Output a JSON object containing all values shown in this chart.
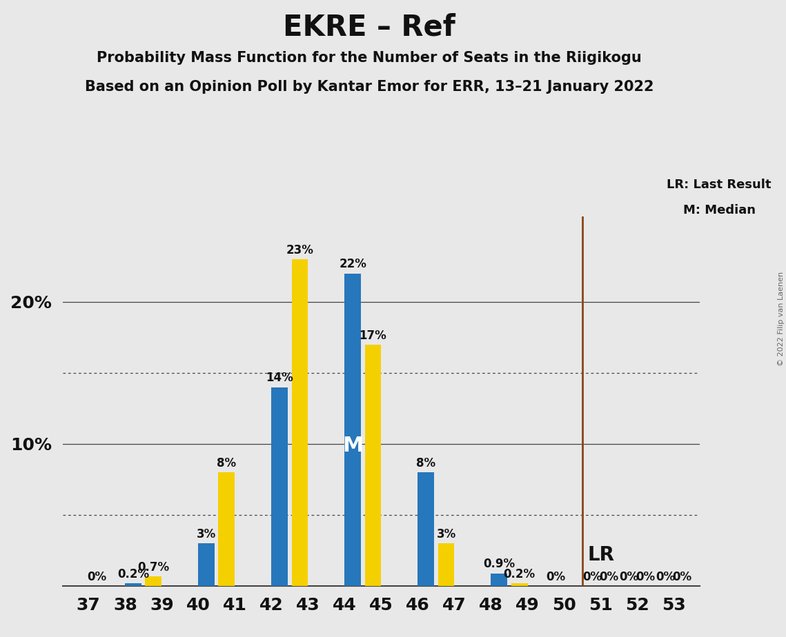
{
  "title": "EKRE – Ref",
  "subtitle1": "Probability Mass Function for the Number of Seats in the Riigikogu",
  "subtitle2": "Based on an Opinion Poll by Kantar Emor for ERR, 13–21 January 2022",
  "copyright": "© 2022 Filip van Laenen",
  "seats": [
    37,
    38,
    39,
    40,
    41,
    42,
    43,
    44,
    45,
    46,
    47,
    48,
    49,
    50,
    51,
    52,
    53
  ],
  "yellow_values": [
    0.0,
    0.0,
    0.7,
    0.0,
    8.0,
    0.0,
    23.0,
    0.0,
    17.0,
    0.0,
    3.0,
    0.0,
    0.2,
    0.0,
    0.0,
    0.0,
    0.0
  ],
  "blue_values": [
    0.0,
    0.2,
    0.0,
    3.0,
    0.0,
    14.0,
    0.0,
    22.0,
    0.0,
    8.0,
    0.0,
    0.9,
    0.0,
    0.0,
    0.0,
    0.0,
    0.0
  ],
  "yellow_labels": [
    "",
    "",
    "0.7%",
    "",
    "8%",
    "",
    "23%",
    "",
    "17%",
    "",
    "3%",
    "",
    "0.2%",
    "0%",
    "0%",
    "0%",
    "0%"
  ],
  "blue_labels": [
    "0%",
    "0.2%",
    "",
    "3%",
    "",
    "14%",
    "",
    "22%",
    "",
    "8%",
    "",
    "0.9%",
    "",
    "",
    "0%",
    "0%",
    "0%"
  ],
  "blue_color": "#2677BB",
  "yellow_color": "#F5D000",
  "bg_color": "#E8E8E8",
  "lr_line_color": "#8B4513",
  "median_seat": 44,
  "median_label": "M",
  "legend_lr": "LR: Last Result",
  "legend_m": "M: Median",
  "lr_label": "LR",
  "ylim": [
    0,
    26
  ],
  "ytick_positions": [
    0,
    10,
    20
  ],
  "ytick_labels": [
    "",
    "10%",
    "20%"
  ],
  "dotted_lines": [
    5,
    15
  ],
  "solid_lines": [
    10,
    20
  ],
  "label_fontsize": 12,
  "bar_width": 0.45
}
